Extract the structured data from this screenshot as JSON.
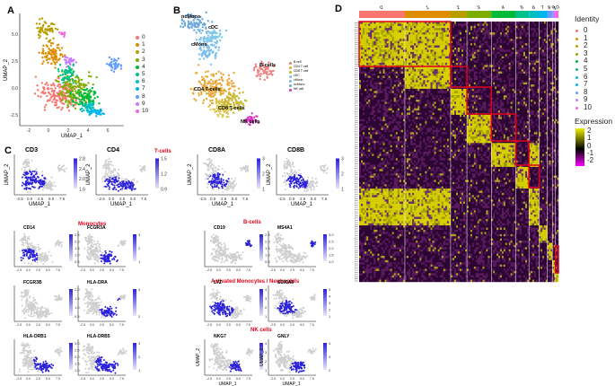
{
  "panels": {
    "A": {
      "letter": "A",
      "xlabel": "UMAP_1",
      "ylabel": "UMAP_2",
      "xticks": [
        "-2",
        "0",
        "2",
        "4",
        "6"
      ],
      "yticks": [
        "-2.5",
        "0.0",
        "2.5",
        "5.0"
      ],
      "legend": [
        "0",
        "1",
        "2",
        "3",
        "4",
        "5",
        "6",
        "7",
        "8",
        "9",
        "10"
      ]
    },
    "B": {
      "letter": "B",
      "labels": [
        "ncMono",
        "cDC",
        "cMono",
        "B-cells",
        "CD4 T-cells",
        "CD8 T-cells",
        "NK cells"
      ],
      "legend": [
        "B cell",
        "CD4 T cell",
        "CD8 T cell",
        "cDC",
        "cMono",
        "ncMono",
        "NK cell"
      ]
    },
    "C": {
      "letter": "C",
      "headers": {
        "tcells": "T-cells",
        "monocytes": "Monocytes",
        "bcells": "B-cells",
        "activated": "Activated Monocytes / Neutrophils",
        "nk": "NK cells"
      },
      "xlabel": "UMAP_1",
      "ylabel": "UMAP_2"
    },
    "D": {
      "letter": "D",
      "identity_title": "Identity",
      "expression_title": "Expression",
      "identity": [
        "0",
        "1",
        "2",
        "3",
        "4",
        "5",
        "6",
        "7",
        "8",
        "9",
        "10"
      ],
      "expression_ticks": [
        "2",
        "1",
        "0",
        "-1",
        "-2"
      ],
      "cluster_labels": [
        "0",
        "1",
        "2",
        "3",
        "4",
        "5",
        "6",
        "7",
        "8",
        "9",
        "10"
      ]
    }
  },
  "umaps": [
    {
      "gene": "CD3",
      "scale": [
        "2.8",
        "2.4",
        "2.0",
        "1.6"
      ],
      "key": "cd3"
    },
    {
      "gene": "CD4",
      "scale": [
        "1.5",
        "1.2",
        "0.9"
      ],
      "key": "cd4"
    },
    {
      "gene": "CD8A",
      "scale": [
        "3",
        "2",
        "1"
      ],
      "key": "cd8a"
    },
    {
      "gene": "CD8B",
      "scale": [
        "3",
        "2",
        "1"
      ],
      "key": "cd8b"
    },
    {
      "gene": "CD14",
      "scale": [
        "2.5",
        "2.0",
        "1.5",
        "1.0",
        "0.5"
      ],
      "key": "cd14"
    },
    {
      "gene": "FCGR3A",
      "scale": [
        "3",
        "2",
        "1"
      ],
      "key": "fcgr3a"
    },
    {
      "gene": "CD19",
      "scale": [
        "2.5",
        "2.0",
        "1.5",
        "1.0",
        "0.5"
      ],
      "key": "cd19"
    },
    {
      "gene": "MS4A1",
      "scale": [
        "3.0",
        "2.5",
        "2.0",
        "1.5",
        "1.0"
      ],
      "key": "ms4a1"
    },
    {
      "gene": "FCGR3B",
      "scale": [
        "2.0",
        "1.5",
        "1.0",
        "0.5"
      ],
      "key": "fcgr3b"
    },
    {
      "gene": "HLA-DRA",
      "scale": [
        "4",
        "2"
      ],
      "key": "hladra"
    },
    {
      "gene": "LYZ",
      "scale": [
        "4",
        "3",
        "2",
        "1"
      ],
      "key": "lyz"
    },
    {
      "gene": "S100A8",
      "scale": [
        "5",
        "4",
        "3",
        "2",
        "1"
      ],
      "key": "s100a8"
    },
    {
      "gene": "HLA-DRB1",
      "scale": [
        "3.0",
        "2.5",
        "2.0",
        "1.5",
        "1.0"
      ],
      "key": "hladrb1"
    },
    {
      "gene": "HLA-DRB5",
      "scale": [
        "3",
        "2",
        "1"
      ],
      "key": "hladrb5"
    },
    {
      "gene": "NKG7",
      "scale": [
        "4",
        "3",
        "2",
        "1"
      ],
      "key": "nkg7"
    },
    {
      "gene": "GNLY",
      "scale": [
        "4",
        "3",
        "2"
      ],
      "key": "gnly"
    }
  ],
  "umap_xticks": [
    "-2.5",
    "0.0",
    "2.5",
    "5.0",
    "7.5"
  ],
  "colors": {
    "clusters": [
      "#F8766D",
      "#DE8C00",
      "#B79F00",
      "#7CAE00",
      "#00BA38",
      "#00C08B",
      "#00BFC4",
      "#00B4F0",
      "#619CFF",
      "#C77CFF",
      "#F564E3"
    ],
    "red": "#e3001b",
    "feature": "#2b21d9",
    "grey": "#cfcfcf",
    "heat_bg": "#2d0633"
  }
}
